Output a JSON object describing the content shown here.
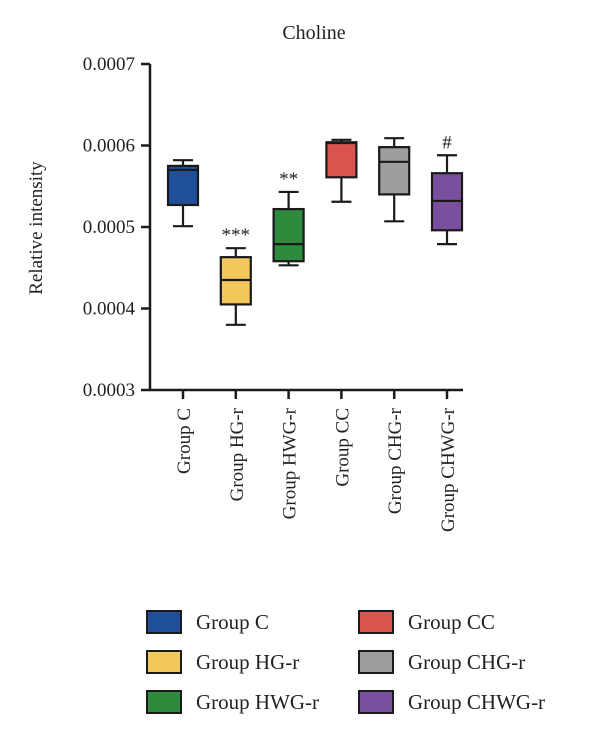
{
  "chart_data": {
    "type": "box",
    "title": "Choline",
    "ylabel": "Relative intensity",
    "xlabel": "",
    "ylim": [
      0.0003,
      0.0007
    ],
    "yticks": [
      "0.0003",
      "0.0004",
      "0.0005",
      "0.0006",
      "0.0007"
    ],
    "yticks_values": [
      0.0003,
      0.0004,
      0.0005,
      0.0006,
      0.0007
    ],
    "grid": false,
    "legend_position": "bottom",
    "categories": [
      "Group C",
      "Group HG-r",
      "Group HWG-r",
      "Group CC",
      "Group CHG-r",
      "Group CHWG-r"
    ],
    "series": [
      {
        "name": "Group C",
        "color": "#1f4e9a",
        "min": 0.000501,
        "q1": 0.000527,
        "median": 0.00057,
        "q3": 0.000575,
        "max": 0.000582,
        "annotation": ""
      },
      {
        "name": "Group HG-r",
        "color": "#f2c75c",
        "min": 0.00038,
        "q1": 0.000405,
        "median": 0.000435,
        "q3": 0.000463,
        "max": 0.000474,
        "annotation": "***"
      },
      {
        "name": "Group HWG-r",
        "color": "#2e8b3d",
        "min": 0.000453,
        "q1": 0.000458,
        "median": 0.000479,
        "q3": 0.000522,
        "max": 0.000543,
        "annotation": "**"
      },
      {
        "name": "Group CC",
        "color": "#d9534f",
        "min": 0.000531,
        "q1": 0.000561,
        "median": 0.000603,
        "q3": 0.000604,
        "max": 0.000607,
        "annotation": ""
      },
      {
        "name": "Group CHG-r",
        "color": "#9e9e9e",
        "min": 0.000507,
        "q1": 0.00054,
        "median": 0.00058,
        "q3": 0.000598,
        "max": 0.000609,
        "annotation": ""
      },
      {
        "name": "Group CHWG-r",
        "color": "#7b4fa0",
        "min": 0.000479,
        "q1": 0.000496,
        "median": 0.000532,
        "q3": 0.000566,
        "max": 0.000588,
        "annotation": "#"
      }
    ]
  },
  "legend": {
    "items": [
      {
        "label": "Group C",
        "color": "#1f4e9a"
      },
      {
        "label": "Group CC",
        "color": "#d9534f"
      },
      {
        "label": "Group HG-r",
        "color": "#f2c75c"
      },
      {
        "label": "Group CHG-r",
        "color": "#9e9e9e"
      },
      {
        "label": "Group HWG-r",
        "color": "#2e8b3d"
      },
      {
        "label": "Group CHWG-r",
        "color": "#7b4fa0"
      }
    ]
  }
}
